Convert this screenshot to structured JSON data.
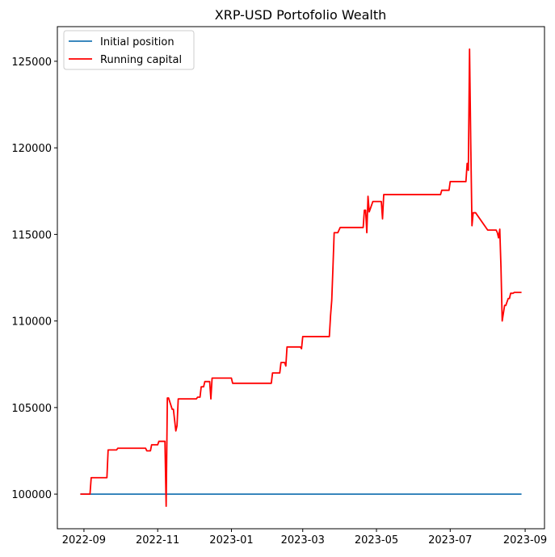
{
  "chart_data": {
    "type": "line",
    "title": "XRP-USD Portofolio Wealth",
    "xlabel": "",
    "ylabel": "",
    "x_is_date": true,
    "xlim": [
      "2022-08-10",
      "2023-09-17"
    ],
    "ylim": [
      98000,
      127000
    ],
    "x_ticks": [
      "2022-09-01",
      "2022-11-01",
      "2023-01-01",
      "2023-03-01",
      "2023-05-01",
      "2023-07-01",
      "2023-09-01"
    ],
    "x_tick_labels": [
      "2022-09",
      "2022-11",
      "2023-01",
      "2023-03",
      "2023-05",
      "2023-07",
      "2023-09"
    ],
    "y_ticks": [
      100000,
      105000,
      110000,
      115000,
      120000,
      125000
    ],
    "y_tick_labels": [
      "100000",
      "105000",
      "110000",
      "115000",
      "120000",
      "125000"
    ],
    "grid": false,
    "legend_position": "top-left",
    "series": [
      {
        "name": "Initial position",
        "color": "#1f77b4",
        "x": [
          "2022-08-29",
          "2023-08-29"
        ],
        "y": [
          100000,
          100000
        ]
      },
      {
        "name": "Running capital",
        "color": "#ff0000",
        "x": [
          "2022-08-29",
          "2022-09-06",
          "2022-09-07",
          "2022-09-20",
          "2022-09-21",
          "2022-09-28",
          "2022-09-29",
          "2022-10-22",
          "2022-10-23",
          "2022-10-26",
          "2022-10-27",
          "2022-11-01",
          "2022-11-02",
          "2022-11-07",
          "2022-11-08",
          "2022-11-09",
          "2022-11-10",
          "2022-11-13",
          "2022-11-14",
          "2022-11-16",
          "2022-11-17",
          "2022-11-18",
          "2022-11-19",
          "2022-11-20",
          "2022-12-03",
          "2022-12-04",
          "2022-12-06",
          "2022-12-07",
          "2022-12-09",
          "2022-12-10",
          "2022-12-14",
          "2022-12-15",
          "2022-12-16",
          "2023-01-01",
          "2023-01-02",
          "2023-02-03",
          "2023-02-04",
          "2023-02-10",
          "2023-02-11",
          "2023-02-14",
          "2023-02-15",
          "2023-02-16",
          "2023-02-27",
          "2023-02-28",
          "2023-03-01",
          "2023-03-23",
          "2023-03-24",
          "2023-03-25",
          "2023-03-26",
          "2023-03-27",
          "2023-03-28",
          "2023-03-30",
          "2023-04-01",
          "2023-04-02",
          "2023-04-20",
          "2023-04-21",
          "2023-04-22",
          "2023-04-23",
          "2023-04-24",
          "2023-04-25",
          "2023-04-26",
          "2023-04-28",
          "2023-05-05",
          "2023-05-06",
          "2023-05-07",
          "2023-06-23",
          "2023-06-24",
          "2023-06-30",
          "2023-07-01",
          "2023-07-14",
          "2023-07-15",
          "2023-07-16",
          "2023-07-17",
          "2023-07-18",
          "2023-07-19",
          "2023-07-20",
          "2023-07-21",
          "2023-07-22",
          "2023-08-01",
          "2023-08-02",
          "2023-08-08",
          "2023-08-09",
          "2023-08-10",
          "2023-08-11",
          "2023-08-12",
          "2023-08-13",
          "2023-08-15",
          "2023-08-16",
          "2023-08-18",
          "2023-08-19",
          "2023-08-20",
          "2023-08-21",
          "2023-08-22",
          "2023-08-23",
          "2023-08-24",
          "2023-08-25",
          "2023-08-29"
        ],
        "y": [
          100000,
          100000,
          100950,
          100950,
          102550,
          102550,
          102650,
          102650,
          102500,
          102500,
          102850,
          102850,
          103050,
          103050,
          99300,
          105550,
          105550,
          104900,
          104900,
          103650,
          103950,
          105500,
          105500,
          105500,
          105500,
          105600,
          105600,
          106200,
          106200,
          106500,
          106500,
          105500,
          106700,
          106700,
          106400,
          106400,
          107000,
          107000,
          107600,
          107600,
          107400,
          108500,
          108500,
          108400,
          109100,
          109100,
          110300,
          111200,
          113100,
          115100,
          115100,
          115100,
          115400,
          115400,
          115400,
          116400,
          116400,
          115100,
          117200,
          116300,
          116500,
          116900,
          116900,
          115900,
          117300,
          117300,
          117550,
          117550,
          118050,
          118050,
          119100,
          118700,
          125700,
          120200,
          115500,
          116250,
          116250,
          116250,
          115250,
          115250,
          115250,
          115100,
          114800,
          115300,
          113100,
          110000,
          110900,
          110900,
          111300,
          111300,
          111600,
          111600,
          111600,
          111650,
          111650,
          111650,
          111650
        ]
      }
    ]
  }
}
